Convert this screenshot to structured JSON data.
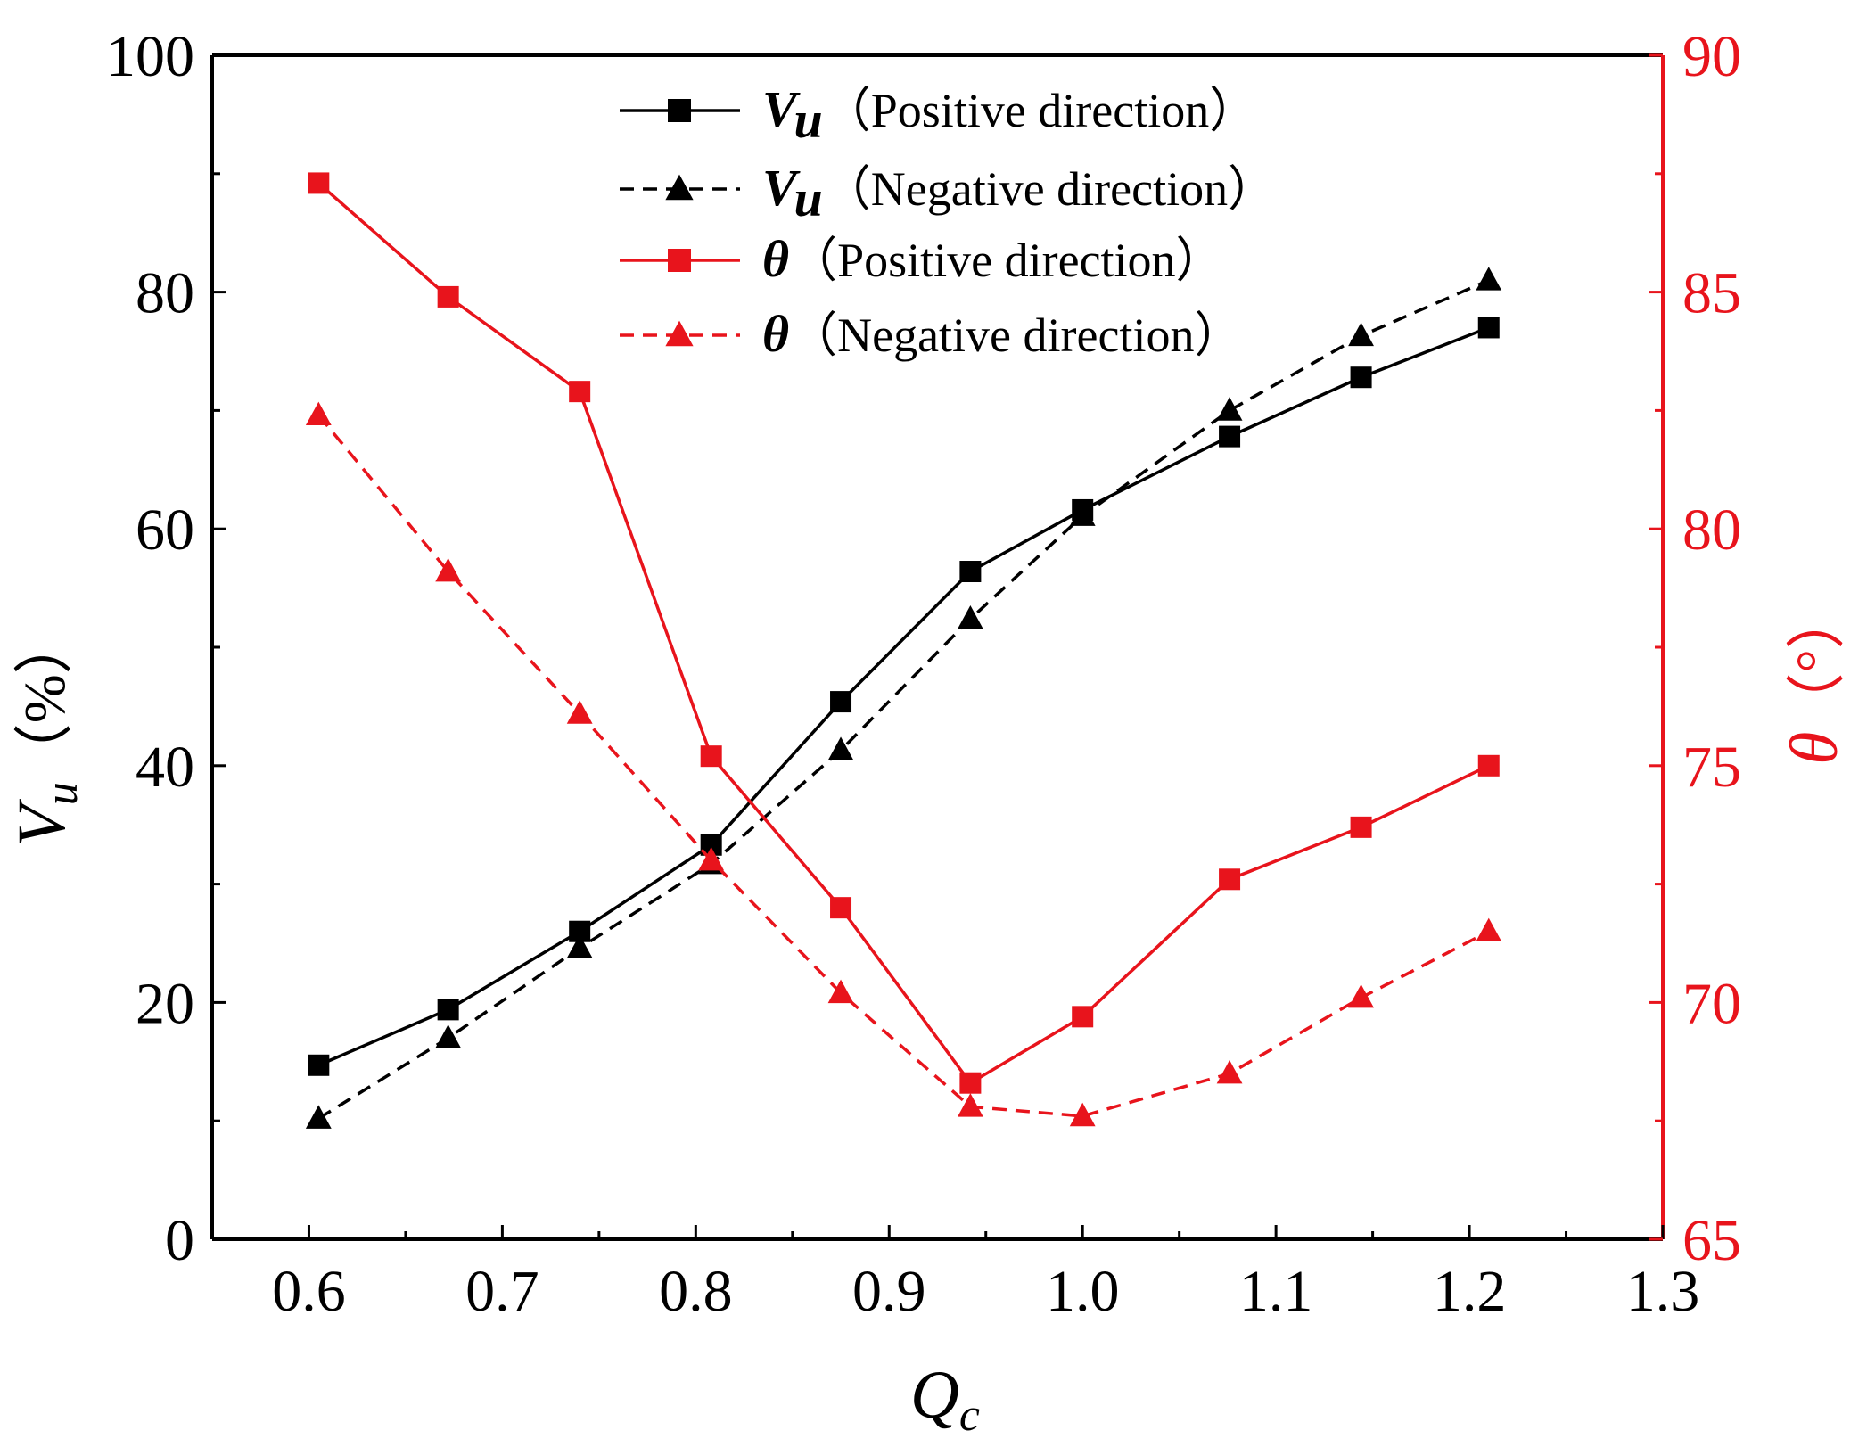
{
  "chart_data": {
    "type": "line",
    "title": "",
    "xlabel": "Q",
    "xlabel_sub": "c",
    "ylabel": "V",
    "ylabel_sub": "u",
    "ylabel_unit": "（%）",
    "y2label": "θ",
    "y2label_unit": "（°）",
    "xlim": [
      0.55,
      1.3
    ],
    "ylim": [
      0,
      100
    ],
    "y2lim": [
      65,
      90
    ],
    "x_ticks": [
      "0.6",
      "0.7",
      "0.8",
      "0.9",
      "1.0",
      "1.1",
      "1.2",
      "1.3"
    ],
    "y_ticks": [
      "0",
      "20",
      "40",
      "60",
      "80",
      "100"
    ],
    "y2_ticks": [
      "65",
      "70",
      "75",
      "80",
      "85",
      "90"
    ],
    "x": [
      0.605,
      0.672,
      0.74,
      0.808,
      0.875,
      0.942,
      1.0,
      1.076,
      1.144,
      1.21
    ],
    "series": [
      {
        "name": "Vu Positive direction",
        "legend_symbol": "V",
        "legend_sub": "u",
        "legend_label": "（Positive direction）",
        "axis": "left",
        "color": "#000000",
        "dash": "solid",
        "marker": "square",
        "values": [
          14.7,
          19.4,
          26.0,
          33.3,
          45.4,
          56.4,
          61.6,
          67.8,
          72.8,
          77.0
        ]
      },
      {
        "name": "Vu Negative direction",
        "legend_symbol": "V",
        "legend_sub": "u",
        "legend_label": "（Negative direction）",
        "axis": "left",
        "color": "#000000",
        "dash": "dashed",
        "marker": "triangle",
        "values": [
          10.2,
          17.0,
          24.6,
          31.7,
          41.3,
          52.4,
          61.1,
          70.0,
          76.3,
          81.0
        ]
      },
      {
        "name": "θ Positive direction",
        "legend_symbol": "θ",
        "legend_sub": "",
        "legend_label": "（Positive direction）",
        "axis": "right",
        "color": "#e8141c",
        "dash": "solid",
        "marker": "square",
        "values": [
          87.3,
          84.9,
          82.9,
          75.2,
          72.0,
          68.3,
          69.7,
          72.6,
          73.7,
          75.0
        ]
      },
      {
        "name": "θ Negative direction",
        "legend_symbol": "θ",
        "legend_sub": "",
        "legend_label": "（Negative direction）",
        "axis": "right",
        "color": "#e8141c",
        "dash": "dashed",
        "marker": "triangle",
        "values": [
          82.4,
          79.1,
          76.1,
          73.0,
          70.2,
          67.8,
          67.6,
          68.5,
          70.1,
          71.5
        ]
      }
    ],
    "legend_position": "top-center",
    "grid": false
  }
}
